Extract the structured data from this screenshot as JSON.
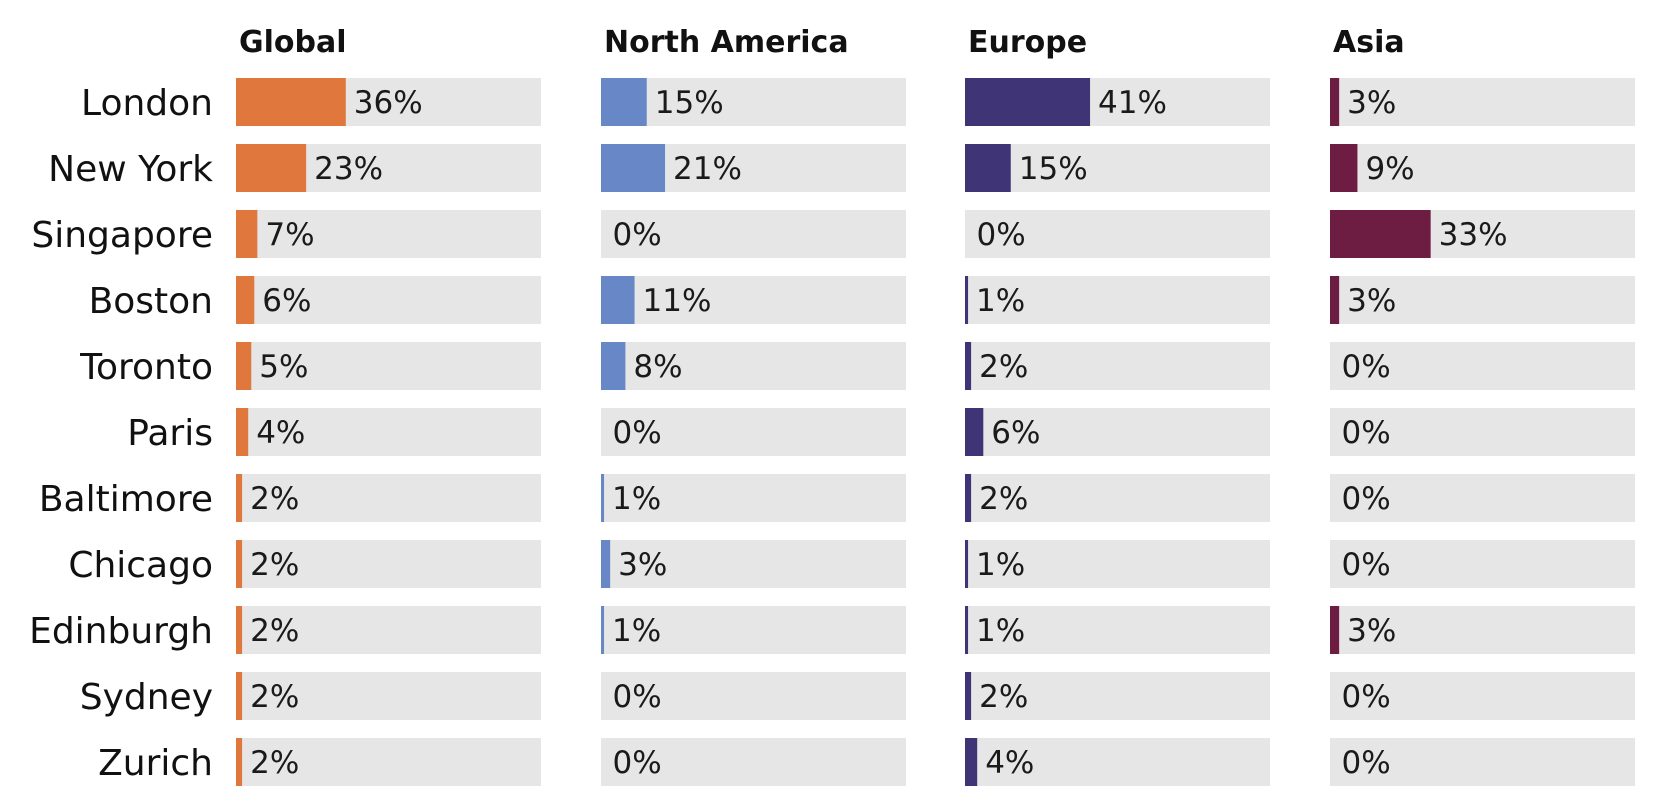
{
  "chart_data": {
    "type": "bar",
    "orientation": "horizontal",
    "layout": "small-multiples",
    "xlim": [
      0,
      100
    ],
    "grid": false,
    "legend": "none",
    "categories": [
      "London",
      "New York",
      "Singapore",
      "Boston",
      "Toronto",
      "Paris",
      "Baltimore",
      "Chicago",
      "Edinburgh",
      "Sydney",
      "Zurich"
    ],
    "value_unit": "%",
    "series": [
      {
        "name": "Global",
        "color": "#E0773D",
        "values": [
          36,
          23,
          7,
          6,
          5,
          4,
          2,
          2,
          2,
          2,
          2
        ],
        "labels": [
          "36%",
          "23%",
          "7%",
          "6%",
          "5%",
          "4%",
          "2%",
          "2%",
          "2%",
          "2%",
          "2%"
        ]
      },
      {
        "name": "North America",
        "color": "#6887C6",
        "values": [
          15,
          21,
          0,
          11,
          8,
          0,
          1,
          3,
          1,
          0,
          0
        ],
        "labels": [
          "15%",
          "21%",
          "0%",
          "11%",
          "8%",
          "0%",
          "1%",
          "3%",
          "1%",
          "0%",
          "0%"
        ]
      },
      {
        "name": "Europe",
        "color": "#3F3476",
        "values": [
          41,
          15,
          0,
          1,
          2,
          6,
          2,
          1,
          1,
          2,
          4
        ],
        "labels": [
          "41%",
          "15%",
          "0%",
          "1%",
          "2%",
          "6%",
          "2%",
          "1%",
          "1%",
          "2%",
          "4%"
        ]
      },
      {
        "name": "Asia",
        "color": "#6E1D42",
        "values": [
          3,
          9,
          33,
          3,
          0,
          0,
          0,
          0,
          3,
          0,
          0
        ],
        "labels": [
          "3%",
          "9%",
          "33%",
          "3%",
          "0%",
          "0%",
          "0%",
          "0%",
          "3%",
          "0%",
          "0%"
        ]
      }
    ],
    "track_color": "#E6E6E6"
  }
}
